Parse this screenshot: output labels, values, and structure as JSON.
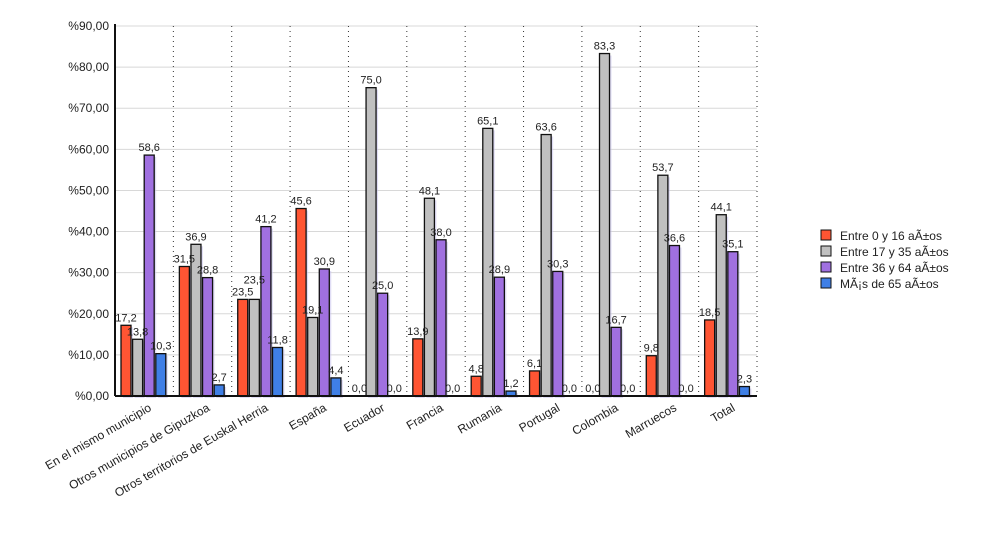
{
  "chart_data": {
    "type": "bar",
    "title": "",
    "xlabel": "",
    "ylabel": "",
    "ylim": [
      0,
      90
    ],
    "yticks": [
      "%0,00",
      "%10,00",
      "%20,00",
      "%30,00",
      "%40,00",
      "%50,00",
      "%60,00",
      "%70,00",
      "%80,00",
      "%90,00"
    ],
    "grid": true,
    "legend_position": "right",
    "categories": [
      "En el mismo municipio",
      "Otros municipios de Gipuzkoa",
      "Otros territorios de Euskal Herria",
      "España",
      "Ecuador",
      "Francia",
      "Rumania",
      "Portugal",
      "Colombia",
      "Marruecos",
      "Total"
    ],
    "series": [
      {
        "name": "Entre 0 y 16 aÃ±os",
        "color": "#ff5533",
        "values": [
          17.2,
          31.5,
          23.5,
          45.6,
          0.0,
          13.9,
          4.8,
          6.1,
          0.0,
          9.8,
          18.5
        ]
      },
      {
        "name": "Entre 17 y 35 aÃ±os",
        "color": "#c0c0c0",
        "values": [
          13.8,
          36.9,
          23.5,
          19.1,
          75.0,
          48.1,
          65.1,
          63.6,
          83.3,
          53.7,
          44.1
        ]
      },
      {
        "name": "Entre 36 y 64 aÃ±os",
        "color": "#a070e0",
        "values": [
          58.6,
          28.8,
          41.2,
          30.9,
          25.0,
          38.0,
          28.9,
          30.3,
          16.7,
          36.6,
          35.1
        ]
      },
      {
        "name": "MÃ¡s de 65 aÃ±os",
        "color": "#3f7fe6",
        "values": [
          10.3,
          2.7,
          11.8,
          4.4,
          0.0,
          0.0,
          1.2,
          0.0,
          0.0,
          0.0,
          2.3
        ]
      }
    ]
  }
}
